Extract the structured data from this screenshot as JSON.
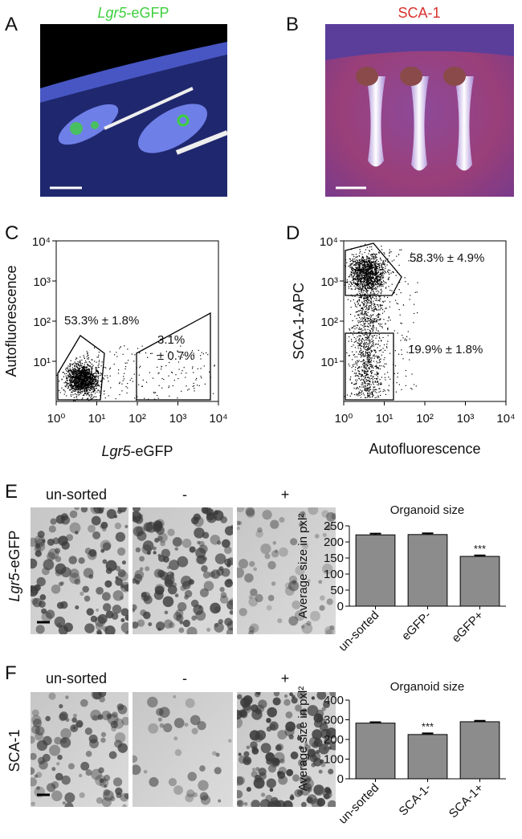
{
  "panels": [
    "A",
    "B",
    "C",
    "D",
    "E",
    "F"
  ],
  "image_titles": {
    "A": {
      "italic": "Lgr5",
      "rest": "-eGFP"
    },
    "B": "SCA-1"
  },
  "image_labels": {
    "E": [
      "un-sorted",
      "-",
      "+"
    ],
    "F": [
      "un-sorted",
      "-",
      "+"
    ]
  },
  "row_labels": {
    "E": {
      "italic": "Lgr5",
      "rest": "-eGFP"
    },
    "F": "SCA-1"
  },
  "chart_data": [
    {
      "type": "scatter",
      "xlabel": {
        "italic": "Lgr5",
        "rest": "-eGFP"
      },
      "ylabel": "Autofluorescence",
      "xscale": "log",
      "yscale": "log",
      "xlim": [
        1,
        10000
      ],
      "ylim": [
        1,
        10000
      ],
      "xticks": [
        {
          "value": 1,
          "label": "10⁰"
        },
        {
          "value": 10,
          "label": "10¹"
        },
        {
          "value": 100,
          "label": "10²"
        },
        {
          "value": 1000,
          "label": "10³"
        },
        {
          "value": 10000,
          "label": "10⁴"
        }
      ],
      "yticks": [
        {
          "value": 10,
          "label": "10¹"
        },
        {
          "value": 100,
          "label": "10²"
        },
        {
          "value": 1000,
          "label": "10³"
        },
        {
          "value": 10000,
          "label": "10⁴"
        }
      ],
      "gates": [
        [
          "53.3% ± 1.8%"
        ],
        [
          "3.1%",
          "± 0.7%"
        ]
      ]
    },
    {
      "type": "scatter",
      "xlabel": "Autofluorescence",
      "ylabel": "SCA-1-APC",
      "xscale": "log",
      "yscale": "log",
      "xlim": [
        1,
        10000
      ],
      "ylim": [
        1,
        10000
      ],
      "xticks": [
        {
          "value": 1,
          "label": "10⁰"
        },
        {
          "value": 10,
          "label": "10¹"
        },
        {
          "value": 100,
          "label": "10²"
        },
        {
          "value": 1000,
          "label": "10³"
        },
        {
          "value": 10000,
          "label": "10⁴"
        }
      ],
      "yticks": [
        {
          "value": 10,
          "label": "10¹"
        },
        {
          "value": 100,
          "label": "10²"
        },
        {
          "value": 1000,
          "label": "10³"
        },
        {
          "value": 10000,
          "label": "10⁴"
        }
      ],
      "gates": [
        [
          "58.3% ± 4.9%"
        ],
        [
          "19.9% ± 1.8%"
        ]
      ]
    },
    {
      "type": "bar",
      "title": "Organoid size",
      "ylabel": "Average size in pxl²",
      "categories": [
        "un-sorted",
        "eGFP-",
        "eGFP+"
      ],
      "values": [
        222,
        223,
        155
      ],
      "errors": [
        4,
        4,
        3
      ],
      "significance": [
        null,
        null,
        "***"
      ],
      "color": "#8c8c8c",
      "ylim": [
        0,
        250
      ],
      "yticks": [
        0,
        50,
        100,
        150,
        200,
        250
      ]
    },
    {
      "type": "bar",
      "title": "Organoid size",
      "ylabel": "Average size in pxl²",
      "categories": [
        "un-sorted",
        "SCA-1-",
        "SCA-1+"
      ],
      "values": [
        283,
        225,
        290
      ],
      "errors": [
        5,
        6,
        5
      ],
      "significance": [
        null,
        "***",
        null
      ],
      "color": "#8c8c8c",
      "ylim": [
        0,
        400
      ],
      "yticks": [
        0,
        100,
        200,
        300,
        400
      ]
    }
  ]
}
